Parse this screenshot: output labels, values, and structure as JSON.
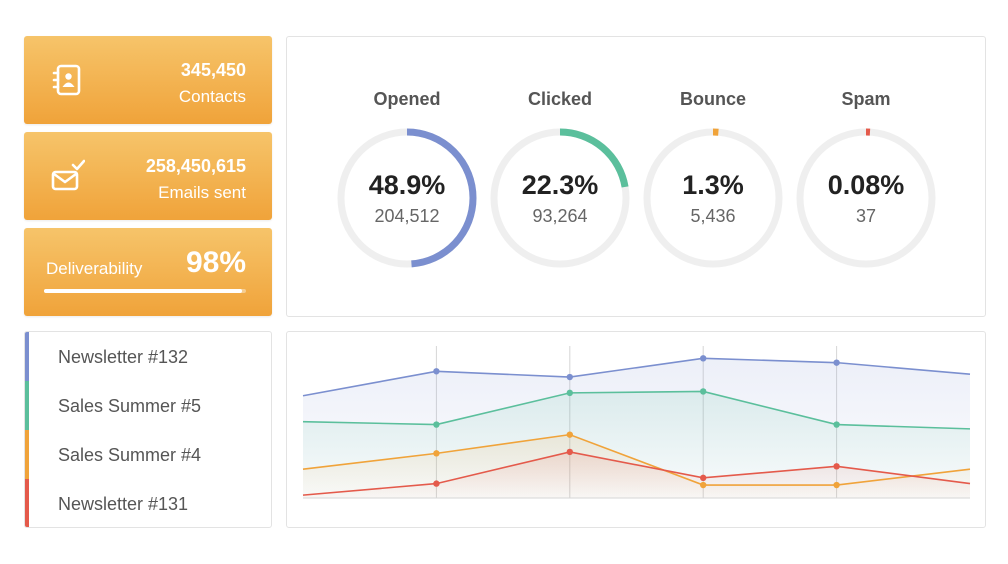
{
  "stats": {
    "contacts": {
      "value": "345,450",
      "label": "Contacts",
      "icon": "contacts-book-icon"
    },
    "emails": {
      "value": "258,450,615",
      "label": "Emails sent",
      "icon": "email-sent-icon"
    },
    "deliverability": {
      "label": "Deliverability",
      "value": "98%",
      "progress": 0.98
    }
  },
  "metrics": [
    {
      "title": "Opened",
      "percent": "48.9%",
      "count": "204,512",
      "fraction": 0.489,
      "color": "#7b8fcf"
    },
    {
      "title": "Clicked",
      "percent": "22.3%",
      "count": "93,264",
      "fraction": 0.223,
      "color": "#5bbf9c"
    },
    {
      "title": "Bounce",
      "percent": "1.3%",
      "count": "5,436",
      "fraction": 0.013,
      "color": "#f0a33a"
    },
    {
      "title": "Spam",
      "percent": "0.08%",
      "count": "37",
      "fraction": 0.0008,
      "color": "#e45a4b"
    }
  ],
  "campaigns": [
    {
      "label": "Newsletter #132",
      "color": "#7b8fcf"
    },
    {
      "label": "Sales Summer #5",
      "color": "#5bbf9c"
    },
    {
      "label": "Sales Summer #4",
      "color": "#f0a33a"
    },
    {
      "label": "Newsletter #131",
      "color": "#e45a4b"
    }
  ],
  "chart_data": {
    "type": "area",
    "x": [
      0,
      1,
      2,
      3,
      4,
      5
    ],
    "ylim": [
      0,
      100
    ],
    "grid": false,
    "series": [
      {
        "name": "Newsletter #132",
        "color": "#7b8fcf",
        "values": [
          71,
          88,
          84,
          97,
          94,
          86
        ]
      },
      {
        "name": "Sales Summer #5",
        "color": "#5bbf9c",
        "values": [
          53,
          51,
          73,
          74,
          51,
          48
        ]
      },
      {
        "name": "Sales Summer #4",
        "color": "#f0a33a",
        "values": [
          20,
          31,
          44,
          9,
          9,
          20
        ]
      },
      {
        "name": "Newsletter #131",
        "color": "#e45a4b",
        "values": [
          2,
          10,
          32,
          14,
          22,
          10
        ]
      }
    ]
  }
}
